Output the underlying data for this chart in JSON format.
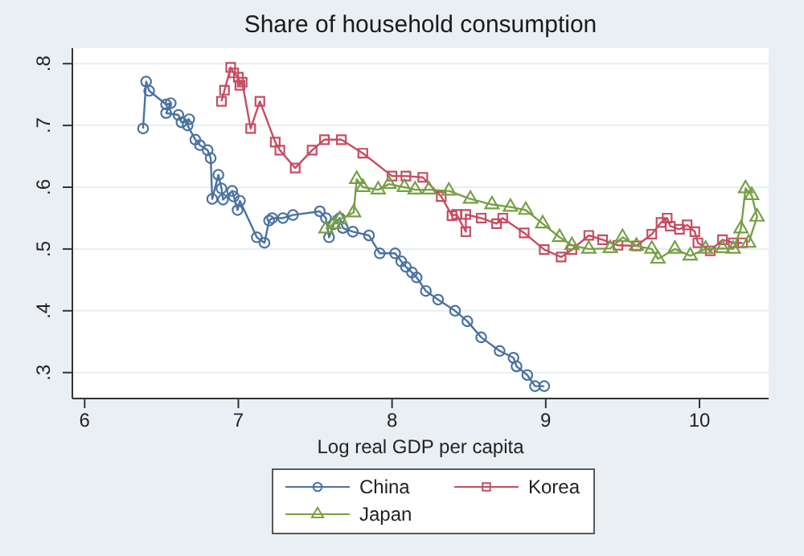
{
  "chart_data": {
    "type": "line",
    "title": "Share of household consumption",
    "xlabel": "Log real GDP per capita",
    "xlim": [
      5.92,
      10.45
    ],
    "xticks": [
      6,
      7,
      8,
      9,
      10
    ],
    "ylim": [
      0.258,
      0.825
    ],
    "yticks": [
      {
        "value": 0.3,
        "label": ".3"
      },
      {
        "value": 0.4,
        "label": ".4"
      },
      {
        "value": 0.5,
        "label": ".5"
      },
      {
        "value": 0.6,
        "label": ".6"
      },
      {
        "value": 0.7,
        "label": ".7"
      },
      {
        "value": 0.8,
        "label": ".8"
      }
    ],
    "grid": "y",
    "legend": "bottom",
    "series": [
      {
        "name": "China",
        "color": "#4a72a0",
        "marker": "circle",
        "x": [
          6.38,
          6.4,
          6.42,
          6.53,
          6.56,
          6.53,
          6.61,
          6.63,
          6.68,
          6.67,
          6.72,
          6.75,
          6.8,
          6.82,
          6.83,
          6.87,
          6.89,
          6.9,
          6.96,
          6.97,
          6.995,
          7.01,
          7.12,
          7.17,
          7.2,
          7.22,
          7.29,
          7.355,
          7.53,
          7.57,
          7.59,
          7.62,
          7.66,
          7.68,
          7.745,
          7.85,
          7.92,
          8.02,
          8.06,
          8.09,
          8.13,
          8.16,
          8.22,
          8.3,
          8.41,
          8.49,
          8.58,
          8.7,
          8.79,
          8.81,
          8.88,
          8.93,
          8.99
        ],
        "values": [
          0.695,
          0.771,
          0.756,
          0.734,
          0.736,
          0.72,
          0.717,
          0.705,
          0.71,
          0.7,
          0.677,
          0.668,
          0.66,
          0.647,
          0.581,
          0.62,
          0.598,
          0.58,
          0.594,
          0.585,
          0.563,
          0.578,
          0.519,
          0.51,
          0.546,
          0.55,
          0.55,
          0.555,
          0.561,
          0.55,
          0.519,
          0.54,
          0.55,
          0.534,
          0.528,
          0.522,
          0.493,
          0.493,
          0.48,
          0.471,
          0.462,
          0.454,
          0.432,
          0.418,
          0.4,
          0.383,
          0.357,
          0.335,
          0.324,
          0.31,
          0.296,
          0.278,
          0.278
        ]
      },
      {
        "name": "Korea",
        "color": "#c64d62",
        "marker": "square",
        "x": [
          6.89,
          6.91,
          6.95,
          6.97,
          7.0,
          7.01,
          7.025,
          7.08,
          7.14,
          7.24,
          7.27,
          7.37,
          7.48,
          7.56,
          7.67,
          7.81,
          8.0,
          8.09,
          8.2,
          8.32,
          8.39,
          8.42,
          8.48,
          8.48,
          8.58,
          8.68,
          8.72,
          8.86,
          8.99,
          9.1,
          9.17,
          9.28,
          9.37,
          9.47,
          9.59,
          9.69,
          9.75,
          9.79,
          9.81,
          9.87,
          9.92,
          9.97,
          9.99,
          10.07,
          10.15,
          10.22,
          10.28
        ],
        "values": [
          0.739,
          0.757,
          0.794,
          0.785,
          0.778,
          0.765,
          0.77,
          0.695,
          0.739,
          0.673,
          0.66,
          0.631,
          0.66,
          0.677,
          0.677,
          0.655,
          0.618,
          0.618,
          0.616,
          0.585,
          0.554,
          0.556,
          0.528,
          0.556,
          0.55,
          0.541,
          0.55,
          0.526,
          0.499,
          0.487,
          0.499,
          0.522,
          0.515,
          0.506,
          0.505,
          0.524,
          0.543,
          0.55,
          0.537,
          0.532,
          0.539,
          0.528,
          0.51,
          0.497,
          0.515,
          0.51,
          0.51
        ]
      },
      {
        "name": "Japan",
        "color": "#76a043",
        "marker": "triangle",
        "x": [
          7.57,
          7.62,
          7.66,
          7.75,
          7.77,
          7.81,
          7.91,
          7.98,
          8.08,
          8.15,
          8.24,
          8.37,
          8.51,
          8.65,
          8.77,
          8.87,
          8.98,
          9.09,
          9.17,
          9.28,
          9.42,
          9.5,
          9.59,
          9.69,
          9.73,
          9.84,
          9.94,
          10.04,
          10.15,
          10.22,
          10.27,
          10.3,
          10.34,
          10.375,
          10.32
        ],
        "values": [
          0.533,
          0.54,
          0.548,
          0.559,
          0.613,
          0.6,
          0.596,
          0.605,
          0.6,
          0.596,
          0.596,
          0.594,
          0.581,
          0.572,
          0.568,
          0.563,
          0.541,
          0.519,
          0.506,
          0.5,
          0.501,
          0.519,
          0.505,
          0.5,
          0.484,
          0.5,
          0.489,
          0.5,
          0.501,
          0.5,
          0.533,
          0.598,
          0.587,
          0.552,
          0.51
        ]
      }
    ]
  }
}
